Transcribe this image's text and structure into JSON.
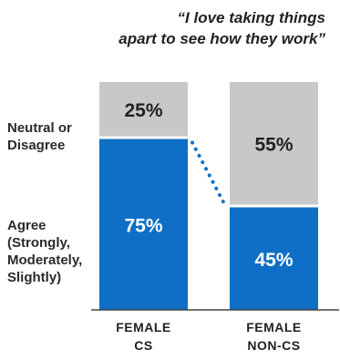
{
  "chart_data": {
    "type": "bar",
    "stacked": true,
    "percent": true,
    "title_line1": "“I love taking things",
    "title_line2": "apart to see how they work”",
    "categories": [
      "FEMALE CS",
      "FEMALE NON-CS"
    ],
    "category_lines": [
      [
        "FEMALE",
        "CS"
      ],
      [
        "FEMALE",
        "NON-CS"
      ]
    ],
    "series": [
      {
        "name": "Agree (Strongly, Moderately, Slightly)",
        "values": [
          75,
          45
        ],
        "color": "#0F6FC6",
        "labels": [
          "75%",
          "45%"
        ]
      },
      {
        "name": "Neutral or Disagree",
        "values": [
          25,
          55
        ],
        "color": "#C8C8C8",
        "labels": [
          "25%",
          "55%"
        ]
      }
    ],
    "legend_lines": {
      "neutral": [
        "Neutral or",
        "Disagree"
      ],
      "agree": [
        "Agree",
        "(Strongly,",
        "Moderately,",
        "Slightly)"
      ]
    },
    "connector_color": "#0F6FC6",
    "ylim": [
      0,
      100
    ],
    "grid": false,
    "legend_position": "left"
  }
}
